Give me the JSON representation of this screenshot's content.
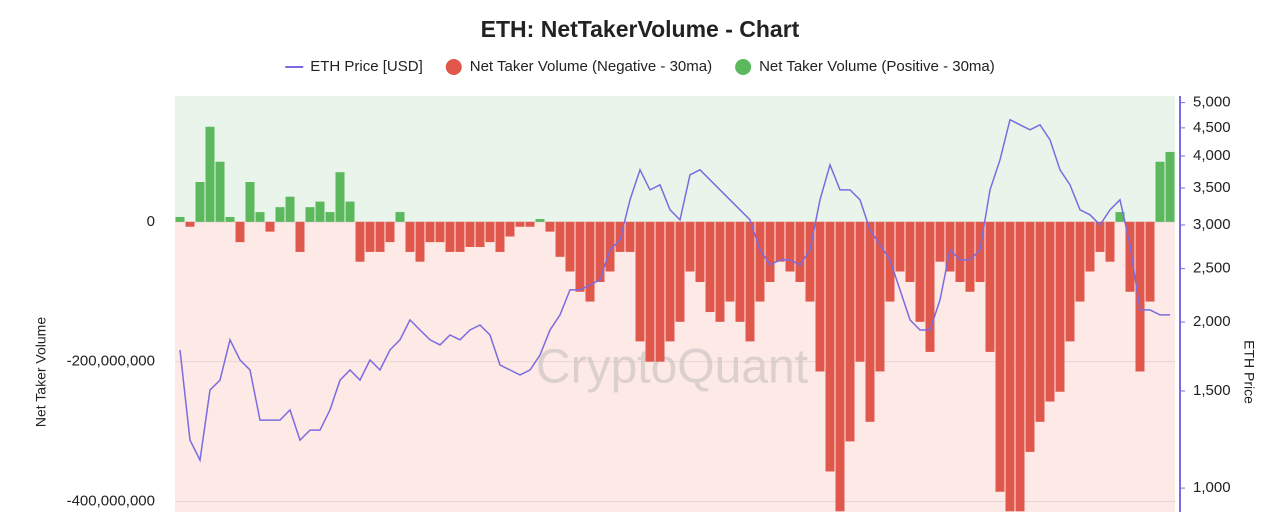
{
  "chart_data": {
    "type": "bar",
    "title": "ETH: NetTakerVolume - Chart",
    "watermark": "CryptoQuant",
    "y_label": "Net Taker Volume",
    "y2_label": "ETH Price",
    "ylim": [
      -415000000,
      180000000
    ],
    "yticks": [
      0,
      {
        "value": -200000000,
        "label": "-200,000,000"
      },
      {
        "value": -400000000,
        "label": "-400,000,000"
      }
    ],
    "y2lim": [
      905,
      5140
    ],
    "y2_log": true,
    "y2ticks": [
      {
        "value": 1000,
        "label": "1,000"
      },
      {
        "value": 1500,
        "label": "1,500"
      },
      {
        "value": 2000,
        "label": "2,000"
      },
      {
        "value": 2500,
        "label": "2,500"
      },
      {
        "value": 3000,
        "label": "3,000"
      },
      {
        "value": 3500,
        "label": "3,500"
      },
      {
        "value": 4000,
        "label": "4,000"
      },
      {
        "value": 4500,
        "label": "4,500"
      },
      {
        "value": 5000,
        "label": "5,000"
      }
    ],
    "legend": "top",
    "series": [
      {
        "name": "ETH Price [USD]",
        "type": "line",
        "axis": "y2",
        "color": "#7b6be0",
        "values": [
          1781,
          1222,
          1124,
          1506,
          1570,
          1857,
          1708,
          1637,
          1328,
          1328,
          1328,
          1386,
          1222,
          1274,
          1274,
          1386,
          1570,
          1637,
          1570,
          1708,
          1637,
          1781,
          1857,
          2018,
          1935,
          1857,
          1818,
          1895,
          1857,
          1935,
          1976,
          1895,
          1672,
          1637,
          1604,
          1637,
          1743,
          1935,
          2061,
          2288,
          2288,
          2335,
          2385,
          2704,
          2819,
          3332,
          3777,
          3473,
          3548,
          3196,
          3064,
          3699,
          3777,
          3622,
          3473,
          3332,
          3196,
          3064,
          2704,
          2539,
          2593,
          2593,
          2539,
          2704,
          3332,
          3857,
          3473,
          3473,
          3332,
          2939,
          2761,
          2593,
          2288,
          2018,
          1935,
          1935,
          2194,
          2704,
          2593,
          2593,
          2704,
          3473,
          3938,
          4655,
          4558,
          4463,
          4558,
          4281,
          3777,
          3548,
          3196,
          3130,
          3001,
          3196,
          3332,
          2761,
          2104,
          2104,
          2061,
          2061
        ]
      },
      {
        "name": "Net Taker Volume (Negative - 30ma)",
        "type": "bar",
        "color": "#e0574c",
        "values": [
          null,
          -7000000,
          null,
          null,
          null,
          null,
          -29000000,
          null,
          null,
          -14000000,
          null,
          null,
          -43000000,
          null,
          null,
          null,
          null,
          null,
          -57000000,
          -43000000,
          -43000000,
          -29000000,
          null,
          -43000000,
          -57000000,
          -29000000,
          -29000000,
          -43000000,
          -43000000,
          -36000000,
          -36000000,
          -29000000,
          -43000000,
          -21000000,
          -7000000,
          -7000000,
          null,
          -14000000,
          -50000000,
          -71000000,
          -100000000,
          -114000000,
          -86000000,
          -71000000,
          -43000000,
          -43000000,
          -171000000,
          -200000000,
          -200000000,
          -171000000,
          -143000000,
          -71000000,
          -86000000,
          -129000000,
          -143000000,
          -114000000,
          -143000000,
          -171000000,
          -114000000,
          -86000000,
          -57000000,
          -71000000,
          -86000000,
          -114000000,
          -214000000,
          -357000000,
          -414000000,
          -314000000,
          -200000000,
          -286000000,
          -214000000,
          -114000000,
          -71000000,
          -86000000,
          -143000000,
          -186000000,
          -57000000,
          -71000000,
          -86000000,
          -100000000,
          -86000000,
          -186000000,
          -386000000,
          -414000000,
          -414000000,
          -329000000,
          -286000000,
          -257000000,
          -243000000,
          -171000000,
          -114000000,
          -71000000,
          -43000000,
          -57000000,
          null,
          -100000000,
          -214000000,
          -114000000,
          null,
          null
        ]
      },
      {
        "name": "Net Taker Volume (Positive - 30ma)",
        "type": "bar",
        "color": "#5cb85c",
        "values": [
          7000000,
          null,
          57000000,
          136000000,
          86000000,
          7000000,
          null,
          57000000,
          14000000,
          null,
          21000000,
          36000000,
          null,
          21000000,
          29000000,
          14000000,
          71000000,
          29000000,
          null,
          null,
          null,
          null,
          14000000,
          null,
          null,
          null,
          null,
          null,
          null,
          null,
          null,
          null,
          null,
          null,
          null,
          null,
          4000000,
          null,
          null,
          null,
          null,
          null,
          null,
          null,
          null,
          null,
          null,
          null,
          null,
          null,
          null,
          null,
          null,
          null,
          null,
          null,
          null,
          null,
          null,
          null,
          null,
          null,
          null,
          null,
          null,
          null,
          null,
          null,
          null,
          null,
          null,
          null,
          null,
          null,
          null,
          null,
          null,
          null,
          null,
          null,
          null,
          null,
          null,
          null,
          null,
          null,
          null,
          null,
          null,
          null,
          null,
          null,
          null,
          null,
          14000000,
          null,
          null,
          null,
          86000000,
          100000000
        ]
      }
    ]
  }
}
